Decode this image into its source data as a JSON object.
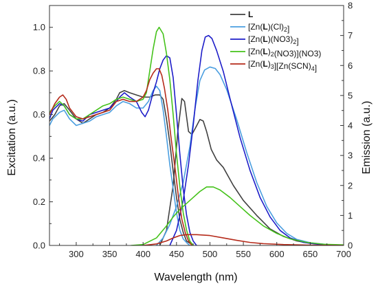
{
  "chart_data": {
    "type": "line",
    "xlabel": "Wavelength (nm)",
    "ylabel_left": "Excitation (a.u.)",
    "ylabel_right": "Emission (a.u.)",
    "xlim": [
      260,
      700
    ],
    "ylim_left": [
      0.0,
      1.1
    ],
    "ylim_right": [
      0,
      8
    ],
    "x_ticks": [
      "300",
      "350",
      "400",
      "450",
      "500",
      "550",
      "600",
      "650",
      "700"
    ],
    "y_left_ticks": [
      "0.0",
      "0.2",
      "0.4",
      "0.6",
      "0.8",
      "1.0"
    ],
    "y_right_ticks": [
      "0",
      "1",
      "2",
      "3",
      "4",
      "5",
      "6",
      "7",
      "8"
    ],
    "legend_position": "top-right",
    "legend": [
      {
        "label": "L",
        "color": "#404040"
      },
      {
        "label": "[Zn(L)(Cl)2]",
        "color": "#4a9ee0"
      },
      {
        "label": "[Zn(L)(NO3)2]",
        "color": "#1c1cc8"
      },
      {
        "label": "[Zn(L)2(NO3)](NO3)",
        "color": "#44c21a"
      },
      {
        "label": "[Zn(L)3][Zn(SCN)4]",
        "color": "#b52a1a"
      }
    ],
    "series": [
      {
        "group": "L",
        "kind": "excitation",
        "axis": "left",
        "color": "#404040",
        "points": [
          [
            260,
            0.57
          ],
          [
            268,
            0.6
          ],
          [
            275,
            0.64
          ],
          [
            282,
            0.65
          ],
          [
            290,
            0.62
          ],
          [
            300,
            0.58
          ],
          [
            310,
            0.56
          ],
          [
            320,
            0.58
          ],
          [
            330,
            0.6
          ],
          [
            340,
            0.61
          ],
          [
            350,
            0.63
          ],
          [
            360,
            0.67
          ],
          [
            365,
            0.7
          ],
          [
            372,
            0.71
          ],
          [
            380,
            0.7
          ],
          [
            390,
            0.69
          ],
          [
            400,
            0.68
          ],
          [
            410,
            0.68
          ],
          [
            418,
            0.69
          ],
          [
            425,
            0.69
          ],
          [
            430,
            0.67
          ],
          [
            435,
            0.58
          ],
          [
            440,
            0.47
          ],
          [
            445,
            0.34
          ],
          [
            450,
            0.22
          ],
          [
            455,
            0.12
          ],
          [
            460,
            0.06
          ],
          [
            465,
            0.02
          ],
          [
            470,
            0.01
          ]
        ]
      },
      {
        "group": "L",
        "kind": "emission",
        "axis": "right",
        "color": "#404040",
        "points": [
          [
            425,
            0.0
          ],
          [
            435,
            0.5
          ],
          [
            445,
            2.0
          ],
          [
            452,
            3.8
          ],
          [
            458,
            4.9
          ],
          [
            462,
            4.8
          ],
          [
            468,
            3.8
          ],
          [
            473,
            3.7
          ],
          [
            478,
            3.9
          ],
          [
            485,
            4.2
          ],
          [
            490,
            4.15
          ],
          [
            495,
            3.8
          ],
          [
            502,
            3.2
          ],
          [
            510,
            2.85
          ],
          [
            520,
            2.6
          ],
          [
            535,
            2.0
          ],
          [
            550,
            1.5
          ],
          [
            570,
            1.0
          ],
          [
            590,
            0.55
          ],
          [
            610,
            0.3
          ],
          [
            630,
            0.15
          ],
          [
            650,
            0.07
          ],
          [
            680,
            0.02
          ],
          [
            700,
            0.0
          ]
        ]
      },
      {
        "group": "[Zn(L)(Cl)2]",
        "kind": "excitation",
        "axis": "left",
        "color": "#4a9ee0",
        "points": [
          [
            260,
            0.55
          ],
          [
            265,
            0.58
          ],
          [
            275,
            0.61
          ],
          [
            282,
            0.62
          ],
          [
            290,
            0.58
          ],
          [
            300,
            0.55
          ],
          [
            310,
            0.56
          ],
          [
            320,
            0.57
          ],
          [
            330,
            0.59
          ],
          [
            340,
            0.6
          ],
          [
            350,
            0.61
          ],
          [
            360,
            0.64
          ],
          [
            370,
            0.66
          ],
          [
            380,
            0.65
          ],
          [
            390,
            0.63
          ],
          [
            400,
            0.63
          ],
          [
            408,
            0.66
          ],
          [
            415,
            0.71
          ],
          [
            420,
            0.73
          ],
          [
            425,
            0.71
          ],
          [
            430,
            0.62
          ],
          [
            435,
            0.5
          ],
          [
            440,
            0.37
          ],
          [
            445,
            0.26
          ],
          [
            450,
            0.15
          ],
          [
            455,
            0.07
          ],
          [
            460,
            0.03
          ],
          [
            466,
            0.01
          ],
          [
            470,
            0.0
          ]
        ]
      },
      {
        "group": "[Zn(L)(Cl)2]",
        "kind": "emission",
        "axis": "right",
        "color": "#4a9ee0",
        "points": [
          [
            420,
            0.0
          ],
          [
            430,
            0.25
          ],
          [
            440,
            0.7
          ],
          [
            450,
            1.3
          ],
          [
            460,
            2.1
          ],
          [
            470,
            3.3
          ],
          [
            478,
            4.6
          ],
          [
            485,
            5.5
          ],
          [
            492,
            5.85
          ],
          [
            500,
            5.95
          ],
          [
            508,
            5.9
          ],
          [
            515,
            5.7
          ],
          [
            525,
            5.2
          ],
          [
            540,
            4.2
          ],
          [
            555,
            3.1
          ],
          [
            570,
            2.1
          ],
          [
            585,
            1.3
          ],
          [
            600,
            0.75
          ],
          [
            615,
            0.4
          ],
          [
            630,
            0.2
          ],
          [
            650,
            0.09
          ],
          [
            675,
            0.03
          ],
          [
            700,
            0.01
          ]
        ]
      },
      {
        "group": "[Zn(L)(NO3)2]",
        "kind": "excitation",
        "axis": "left",
        "color": "#1c1cc8",
        "points": [
          [
            260,
            0.58
          ],
          [
            265,
            0.62
          ],
          [
            275,
            0.65
          ],
          [
            282,
            0.64
          ],
          [
            290,
            0.6
          ],
          [
            300,
            0.58
          ],
          [
            310,
            0.57
          ],
          [
            320,
            0.6
          ],
          [
            330,
            0.61
          ],
          [
            340,
            0.62
          ],
          [
            350,
            0.63
          ],
          [
            360,
            0.66
          ],
          [
            365,
            0.68
          ],
          [
            372,
            0.7
          ],
          [
            380,
            0.68
          ],
          [
            390,
            0.66
          ],
          [
            398,
            0.61
          ],
          [
            403,
            0.59
          ],
          [
            408,
            0.62
          ],
          [
            415,
            0.7
          ],
          [
            420,
            0.75
          ],
          [
            425,
            0.81
          ],
          [
            430,
            0.85
          ],
          [
            435,
            0.87
          ],
          [
            440,
            0.86
          ],
          [
            445,
            0.77
          ],
          [
            450,
            0.6
          ],
          [
            455,
            0.42
          ],
          [
            460,
            0.26
          ],
          [
            465,
            0.14
          ],
          [
            470,
            0.06
          ],
          [
            475,
            0.02
          ],
          [
            480,
            0.0
          ]
        ]
      },
      {
        "group": "[Zn(L)(NO3)2]",
        "kind": "emission",
        "axis": "right",
        "color": "#1c1cc8",
        "points": [
          [
            440,
            0.0
          ],
          [
            450,
            0.5
          ],
          [
            460,
            1.5
          ],
          [
            468,
            2.7
          ],
          [
            475,
            4.0
          ],
          [
            482,
            5.5
          ],
          [
            488,
            6.5
          ],
          [
            493,
            6.95
          ],
          [
            498,
            7.0
          ],
          [
            503,
            6.9
          ],
          [
            510,
            6.5
          ],
          [
            520,
            5.8
          ],
          [
            530,
            4.9
          ],
          [
            545,
            3.6
          ],
          [
            560,
            2.5
          ],
          [
            575,
            1.6
          ],
          [
            590,
            0.95
          ],
          [
            605,
            0.5
          ],
          [
            620,
            0.25
          ],
          [
            640,
            0.1
          ],
          [
            665,
            0.03
          ],
          [
            700,
            0.01
          ]
        ]
      },
      {
        "group": "[Zn(L)2(NO3)](NO3)",
        "kind": "excitation",
        "axis": "left",
        "color": "#44c21a",
        "points": [
          [
            260,
            0.61
          ],
          [
            268,
            0.64
          ],
          [
            275,
            0.66
          ],
          [
            282,
            0.64
          ],
          [
            290,
            0.6
          ],
          [
            300,
            0.58
          ],
          [
            310,
            0.58
          ],
          [
            320,
            0.6
          ],
          [
            330,
            0.62
          ],
          [
            340,
            0.64
          ],
          [
            350,
            0.65
          ],
          [
            360,
            0.67
          ],
          [
            370,
            0.68
          ],
          [
            380,
            0.67
          ],
          [
            390,
            0.66
          ],
          [
            400,
            0.67
          ],
          [
            405,
            0.7
          ],
          [
            410,
            0.8
          ],
          [
            415,
            0.9
          ],
          [
            420,
            0.98
          ],
          [
            424,
            1.0
          ],
          [
            430,
            0.97
          ],
          [
            435,
            0.88
          ],
          [
            440,
            0.76
          ],
          [
            445,
            0.6
          ],
          [
            450,
            0.42
          ],
          [
            455,
            0.27
          ],
          [
            460,
            0.15
          ],
          [
            465,
            0.07
          ],
          [
            470,
            0.02
          ],
          [
            475,
            0.0
          ]
        ]
      },
      {
        "group": "[Zn(L)2(NO3)](NO3)",
        "kind": "emission",
        "axis": "right",
        "color": "#44c21a",
        "points": [
          [
            382,
            0.0
          ],
          [
            400,
            0.03
          ],
          [
            420,
            0.25
          ],
          [
            435,
            0.65
          ],
          [
            445,
            0.95
          ],
          [
            455,
            1.2
          ],
          [
            465,
            1.4
          ],
          [
            475,
            1.6
          ],
          [
            485,
            1.8
          ],
          [
            495,
            1.95
          ],
          [
            505,
            1.95
          ],
          [
            515,
            1.85
          ],
          [
            530,
            1.6
          ],
          [
            545,
            1.3
          ],
          [
            560,
            1.0
          ],
          [
            580,
            0.65
          ],
          [
            600,
            0.4
          ],
          [
            620,
            0.22
          ],
          [
            645,
            0.1
          ],
          [
            670,
            0.04
          ],
          [
            700,
            0.02
          ]
        ]
      },
      {
        "group": "[Zn(L)3][Zn(SCN)4]",
        "kind": "excitation",
        "axis": "left",
        "color": "#b52a1a",
        "points": [
          [
            260,
            0.6
          ],
          [
            268,
            0.65
          ],
          [
            275,
            0.68
          ],
          [
            280,
            0.69
          ],
          [
            285,
            0.67
          ],
          [
            290,
            0.63
          ],
          [
            300,
            0.59
          ],
          [
            310,
            0.58
          ],
          [
            320,
            0.59
          ],
          [
            330,
            0.6
          ],
          [
            340,
            0.61
          ],
          [
            350,
            0.62
          ],
          [
            360,
            0.66
          ],
          [
            370,
            0.67
          ],
          [
            380,
            0.66
          ],
          [
            390,
            0.66
          ],
          [
            400,
            0.68
          ],
          [
            405,
            0.71
          ],
          [
            410,
            0.76
          ],
          [
            415,
            0.79
          ],
          [
            420,
            0.81
          ],
          [
            424,
            0.81
          ],
          [
            428,
            0.78
          ],
          [
            432,
            0.72
          ],
          [
            437,
            0.62
          ],
          [
            442,
            0.49
          ],
          [
            448,
            0.35
          ],
          [
            453,
            0.22
          ],
          [
            458,
            0.12
          ],
          [
            463,
            0.06
          ],
          [
            468,
            0.02
          ],
          [
            473,
            0.0
          ]
        ]
      },
      {
        "group": "[Zn(L)3][Zn(SCN)4]",
        "kind": "emission",
        "axis": "right",
        "color": "#b52a1a",
        "points": [
          [
            400,
            0.0
          ],
          [
            420,
            0.05
          ],
          [
            435,
            0.15
          ],
          [
            445,
            0.25
          ],
          [
            455,
            0.33
          ],
          [
            465,
            0.36
          ],
          [
            480,
            0.36
          ],
          [
            500,
            0.33
          ],
          [
            520,
            0.25
          ],
          [
            540,
            0.17
          ],
          [
            560,
            0.1
          ],
          [
            580,
            0.06
          ],
          [
            610,
            0.03
          ],
          [
            650,
            0.01
          ],
          [
            700,
            0.0
          ]
        ]
      }
    ]
  }
}
